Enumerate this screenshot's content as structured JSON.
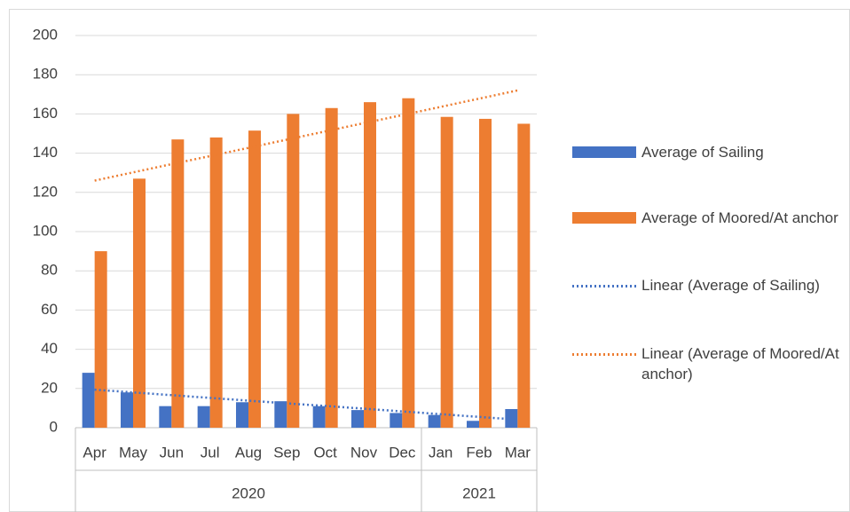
{
  "chart_data": {
    "type": "bar",
    "category_groups": [
      {
        "label": "2020",
        "categories": [
          "Apr",
          "May",
          "Jun",
          "Jul",
          "Aug",
          "Sep",
          "Oct",
          "Nov",
          "Dec"
        ]
      },
      {
        "label": "2021",
        "categories": [
          "Jan",
          "Feb",
          "Mar"
        ]
      }
    ],
    "series": [
      {
        "name": "Average of Sailing",
        "type": "bar",
        "color": "#4472c4",
        "values": [
          28,
          18,
          11,
          11,
          13,
          13.5,
          11,
          9,
          7.5,
          6.5,
          3.5,
          9.5
        ]
      },
      {
        "name": "Average of Moored/At anchor",
        "type": "bar",
        "color": "#ed7d31",
        "values": [
          90,
          127,
          147,
          148,
          151.5,
          160,
          163,
          166,
          168,
          158.5,
          157.5,
          155
        ]
      },
      {
        "name": "Linear (Average of Sailing)",
        "type": "line",
        "style": "dotted",
        "color": "#4472c4",
        "values": [
          19.4,
          18.0,
          16.6,
          15.2,
          13.8,
          12.4,
          11.1,
          9.7,
          8.3,
          6.9,
          5.5,
          4.1
        ]
      },
      {
        "name": "Linear (Average of Moored/At anchor)",
        "type": "line",
        "style": "dotted",
        "color": "#ed7d31",
        "values": [
          126,
          130.2,
          134.4,
          138.5,
          142.7,
          146.9,
          151.1,
          155.3,
          159.4,
          163.6,
          167.8,
          172
        ]
      }
    ],
    "ylim": [
      0,
      200
    ],
    "yticks": [
      0,
      20,
      40,
      60,
      80,
      100,
      120,
      140,
      160,
      180,
      200
    ],
    "grid": true,
    "legend": "right"
  }
}
